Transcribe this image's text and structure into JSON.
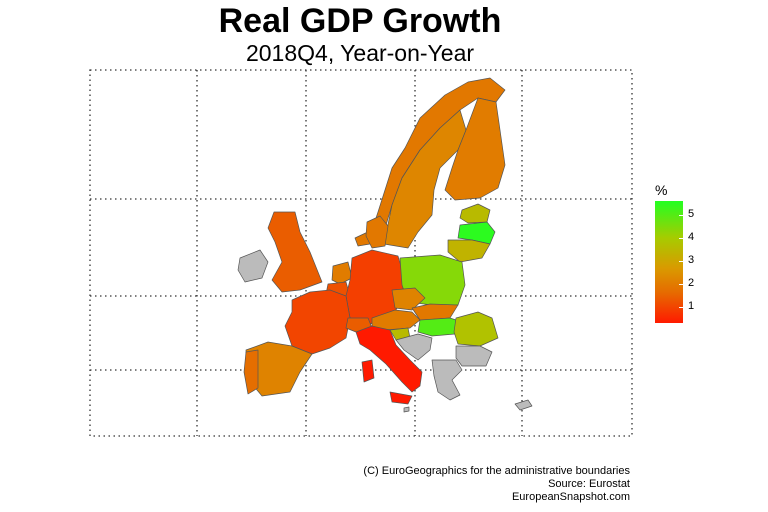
{
  "title": "Real GDP Growth",
  "subtitle": "2018Q4, Year-on-Year",
  "legend": {
    "title": "%",
    "ticks": [
      "5",
      "4",
      "3",
      "2",
      "1"
    ],
    "range": [
      0.3,
      5.6
    ],
    "colors": [
      "#ff1a00",
      "#e66b00",
      "#d99a00",
      "#a6cc00",
      "#22ff22"
    ]
  },
  "credits": {
    "line1": "(C) EuroGeographics for the administrative boundaries",
    "line2": "Source: Eurostat",
    "line3": "EuropeanSnapshot.com"
  },
  "no_data_color": "#bbbbbb",
  "chart_data": {
    "type": "choropleth",
    "grid": true,
    "legend_placement": "right",
    "regions": [
      {
        "name": "Norway",
        "value": 2.0
      },
      {
        "name": "Sweden",
        "value": 2.4
      },
      {
        "name": "Finland",
        "value": 2.1
      },
      {
        "name": "Estonia",
        "value": 3.8
      },
      {
        "name": "Latvia",
        "value": 5.5
      },
      {
        "name": "Lithuania",
        "value": 3.6
      },
      {
        "name": "Denmark",
        "value": 2.0
      },
      {
        "name": "United Kingdom",
        "value": 1.4
      },
      {
        "name": "Ireland",
        "value": null
      },
      {
        "name": "Netherlands",
        "value": 2.1
      },
      {
        "name": "Belgium",
        "value": 1.2
      },
      {
        "name": "Germany",
        "value": 0.9
      },
      {
        "name": "Poland",
        "value": 4.6
      },
      {
        "name": "Czechia",
        "value": 2.3
      },
      {
        "name": "Austria",
        "value": 2.1
      },
      {
        "name": "Slovakia",
        "value": 2.0
      },
      {
        "name": "Hungary",
        "value": 5.1
      },
      {
        "name": "Slovenia",
        "value": 3.8
      },
      {
        "name": "Croatia",
        "value": null
      },
      {
        "name": "Romania",
        "value": 4.0
      },
      {
        "name": "Bulgaria",
        "value": null
      },
      {
        "name": "Greece",
        "value": null
      },
      {
        "name": "France",
        "value": 1.0
      },
      {
        "name": "Switzerland",
        "value": 1.4
      },
      {
        "name": "Italy",
        "value": 0.0
      },
      {
        "name": "Spain",
        "value": 2.3
      },
      {
        "name": "Portugal",
        "value": 1.7
      },
      {
        "name": "Cyprus",
        "value": null
      },
      {
        "name": "Malta",
        "value": null
      }
    ]
  }
}
